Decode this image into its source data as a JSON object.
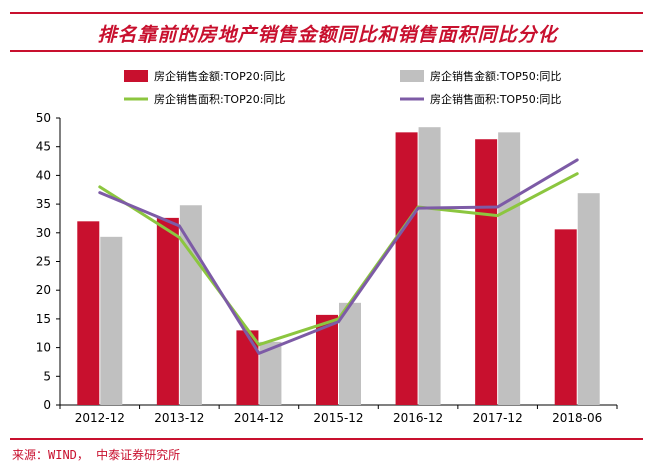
{
  "title": "排名靠前的房地产销售金额同比和销售面积同比分化",
  "source": "来源：WIND， 中泰证券研究所",
  "colors": {
    "accent": "#c8102e",
    "bar_top20": "#c8102e",
    "bar_top50": "#c0c0c0",
    "line_top20": "#8cc63f",
    "line_top50": "#7d5ba6"
  },
  "chart_data": {
    "type": "bar",
    "title": "排名靠前的房地产销售金额同比和销售面积同比分化",
    "categories": [
      "2012-12",
      "2013-12",
      "2014-12",
      "2015-12",
      "2016-12",
      "2017-12",
      "2018-06"
    ],
    "ylim": [
      0,
      50
    ],
    "yticks": [
      0,
      5,
      10,
      15,
      20,
      25,
      30,
      35,
      40,
      45,
      50
    ],
    "grid": false,
    "legend_position": "top",
    "series": [
      {
        "name": "房企销售金额:TOP20:同比",
        "type": "bar",
        "color": "#c8102e",
        "values": [
          32.0,
          32.6,
          13.0,
          15.7,
          47.5,
          46.3,
          30.6
        ]
      },
      {
        "name": "房企销售金额:TOP50:同比",
        "type": "bar",
        "color": "#c0c0c0",
        "values": [
          29.3,
          34.8,
          11.0,
          17.8,
          48.4,
          47.5,
          36.9
        ]
      },
      {
        "name": "房企销售面积:TOP20:同比",
        "type": "line",
        "color": "#8cc63f",
        "values": [
          38.0,
          29.2,
          10.5,
          15.0,
          34.5,
          33.0,
          40.3
        ]
      },
      {
        "name": "房企销售面积:TOP50:同比",
        "type": "line",
        "color": "#7d5ba6",
        "values": [
          37.0,
          31.2,
          9.0,
          14.5,
          34.3,
          34.5,
          42.7
        ]
      }
    ]
  }
}
